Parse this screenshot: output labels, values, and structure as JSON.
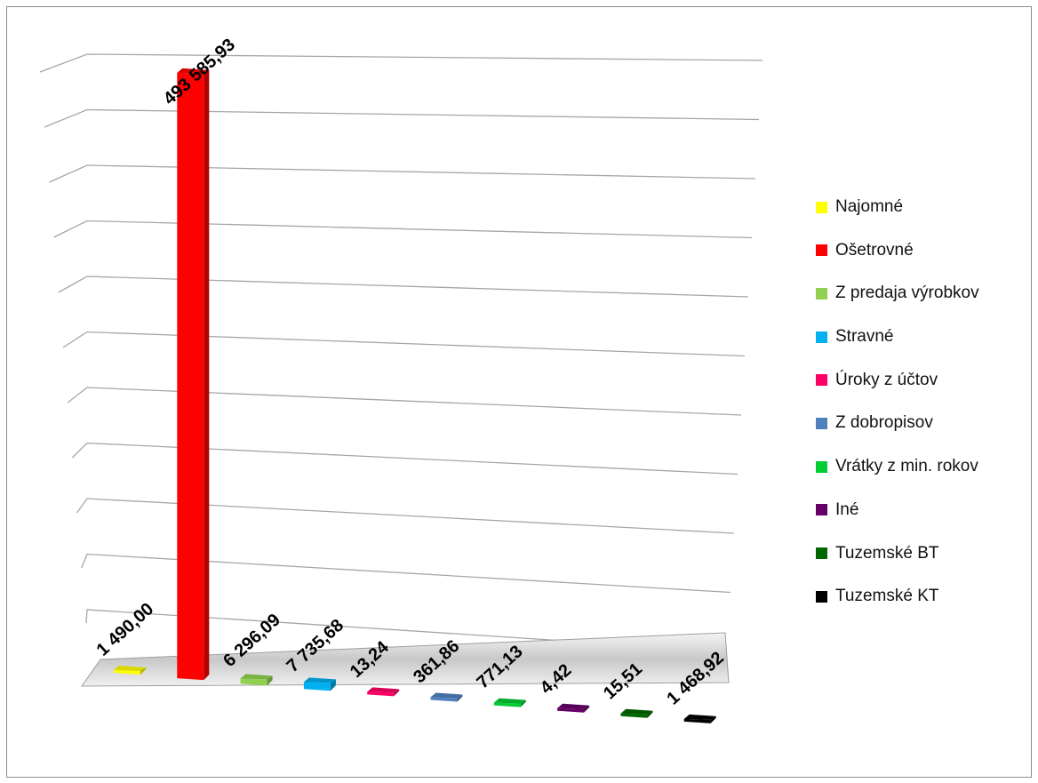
{
  "chart_data": {
    "type": "bar",
    "title": "",
    "xlabel": "",
    "ylabel": "",
    "ylim": [
      0,
      500000
    ],
    "grid": true,
    "legend_position": "right",
    "categories": [
      "Najomné",
      "Ošetrovné",
      "Z predaja výrobkov",
      "Stravné",
      "Úroky z účtov",
      "Z dobropisov",
      "Vrátky z min. rokov",
      "Iné",
      "Tuzemské BT",
      "Tuzemské KT"
    ],
    "values": [
      1490.0,
      493585.93,
      6296.09,
      7735.68,
      13.24,
      361.86,
      771.13,
      4.42,
      15.51,
      1468.92
    ],
    "value_labels": [
      "1 490,00",
      "493 585,93",
      "6 296,09",
      "7 735,68",
      "13,24",
      "361,86",
      "771,13",
      "4,42",
      "15,51",
      "1 468,92"
    ],
    "colors": [
      "#ffff00",
      "#ff0000",
      "#92d050",
      "#00b0f0",
      "#ff0066",
      "#4f81bd",
      "#00cc33",
      "#660066",
      "#006600",
      "#000000"
    ]
  }
}
